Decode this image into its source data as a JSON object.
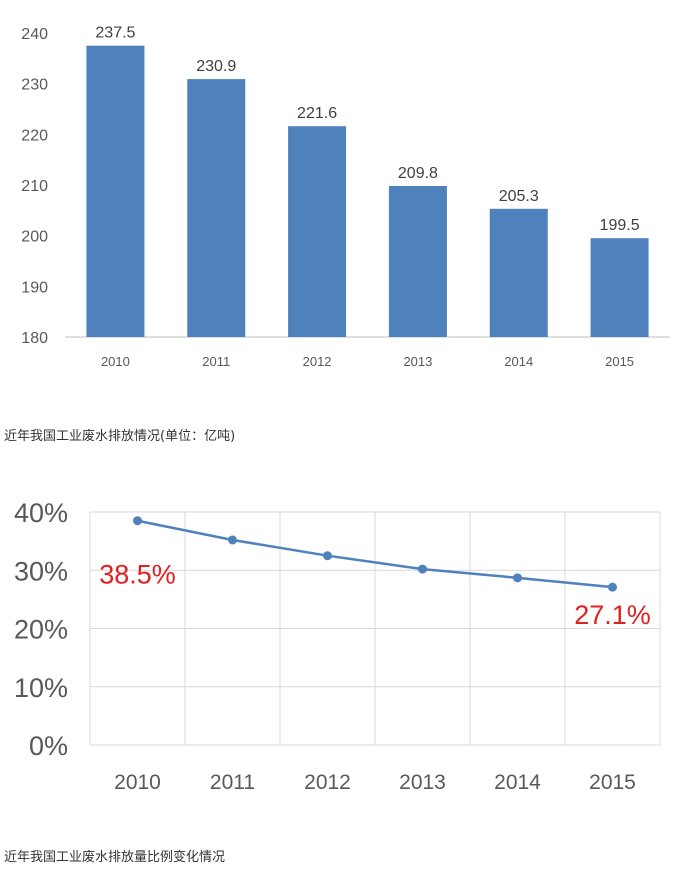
{
  "chart_data": [
    {
      "type": "bar",
      "categories": [
        "2010",
        "2011",
        "2012",
        "2013",
        "2014",
        "2015"
      ],
      "values": [
        237.5,
        230.9,
        221.6,
        209.8,
        205.3,
        199.5
      ],
      "data_labels": [
        "237.5",
        "230.9",
        "221.6",
        "209.8",
        "205.3",
        "199.5"
      ],
      "yticks": [
        "180",
        "190",
        "200",
        "210",
        "220",
        "230",
        "240"
      ],
      "ylim": [
        180,
        240
      ],
      "grid": false,
      "color": "#4f81bd",
      "caption": "近年我国工业废水排放情况(单位：亿吨)"
    },
    {
      "type": "line",
      "categories": [
        "2010",
        "2011",
        "2012",
        "2013",
        "2014",
        "2015"
      ],
      "values": [
        38.5,
        35.2,
        32.5,
        30.2,
        28.7,
        27.1
      ],
      "yticks": [
        "0%",
        "10%",
        "20%",
        "30%",
        "40%"
      ],
      "ylim": [
        0,
        40
      ],
      "grid": true,
      "color": "#4f81bd",
      "annotations": [
        {
          "text": "38.5%",
          "category": "2010",
          "color": "#e02020"
        },
        {
          "text": "27.1%",
          "category": "2015",
          "color": "#e02020"
        }
      ],
      "caption": "近年我国工业废水排放量比例变化情况"
    }
  ]
}
